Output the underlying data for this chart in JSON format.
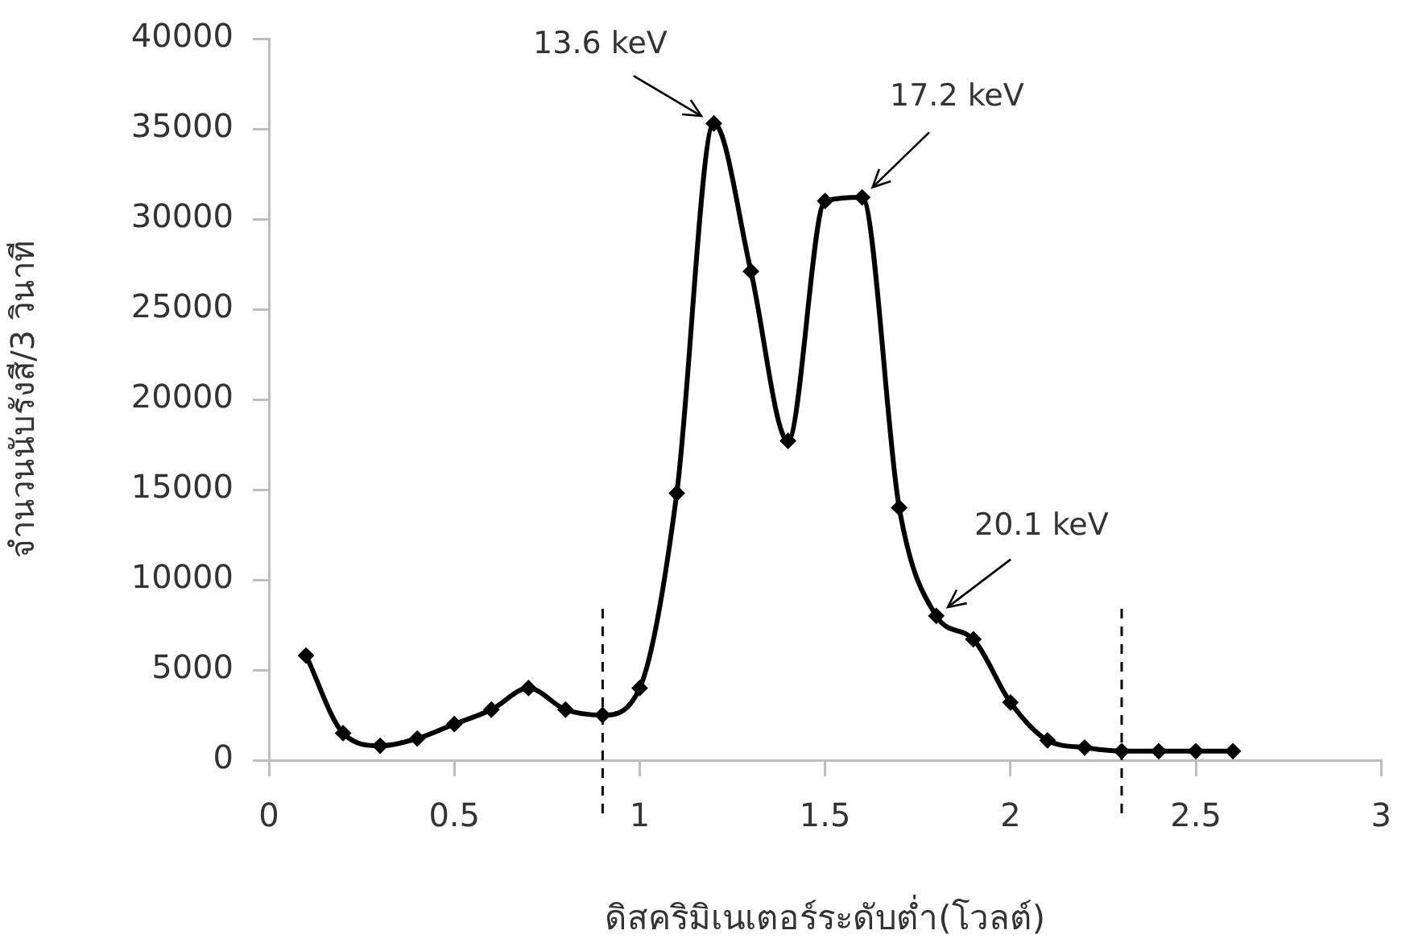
{
  "chart_data": {
    "type": "line",
    "xlabel": "ดิสคริมิเนเตอร์ระดับต่ำ(โวลต์)",
    "ylabel": "จำนวนนับรังสี/3 วินาที",
    "x": [
      0.1,
      0.2,
      0.3,
      0.4,
      0.5,
      0.6,
      0.7,
      0.8,
      0.9,
      1.0,
      1.1,
      1.2,
      1.3,
      1.4,
      1.5,
      1.6,
      1.7,
      1.8,
      1.9,
      2.0,
      2.1,
      2.2,
      2.3,
      2.4,
      2.5,
      2.6
    ],
    "series": [
      {
        "color": "#000000",
        "values": [
          5800,
          1500,
          800,
          1200,
          2000,
          2800,
          4000,
          2800,
          2500,
          4000,
          14800,
          35300,
          27100,
          17700,
          31000,
          31200,
          14000,
          8000,
          6700,
          3200,
          1100,
          700,
          500,
          500,
          500,
          500
        ]
      }
    ],
    "xlim": [
      0,
      3
    ],
    "xticks": [
      0,
      0.5,
      1,
      1.5,
      2,
      2.5,
      3
    ],
    "ylim": [
      0,
      40000
    ],
    "yticks": [
      0,
      5000,
      10000,
      15000,
      20000,
      25000,
      30000,
      35000,
      40000
    ],
    "marker": "diamond",
    "line_style": "solid",
    "grid": false,
    "legend": false,
    "ref_lines": [
      {
        "axis": "x",
        "value": 0.9,
        "line_style": "dashed",
        "color": "#000000"
      },
      {
        "axis": "x",
        "value": 2.3,
        "line_style": "dashed",
        "color": "#000000"
      }
    ],
    "annotations": [
      {
        "text": "13.6 keV",
        "x": 1.2,
        "y": 35300
      },
      {
        "text": "17.2 keV",
        "x": 1.6,
        "y": 31200
      },
      {
        "text": "20.1 keV",
        "x": 1.8,
        "y": 8000
      }
    ]
  }
}
